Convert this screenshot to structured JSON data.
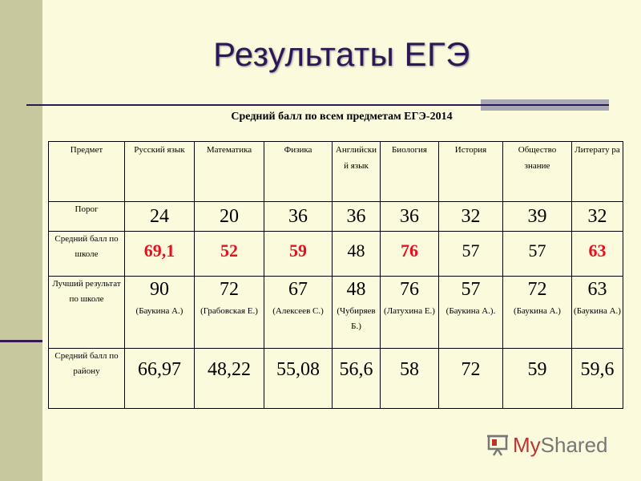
{
  "title": "Результаты ЕГЭ",
  "subtitle": "Средний балл по всем предметам ЕГЭ-2014",
  "logo": {
    "text_my": "My",
    "text_shared": "Shared"
  },
  "colors": {
    "background": "#fbfadc",
    "title": "#2e1755",
    "highlight_red": "#e8101e"
  },
  "table": {
    "header": {
      "subject_label": "Предмет",
      "subjects": [
        "Русский язык",
        "Математика",
        "Физика",
        "Английски й язык",
        "Биология",
        "История",
        "Общество знание",
        "Литерату ра"
      ]
    },
    "threshold": {
      "label": "Порог",
      "values": [
        "24",
        "20",
        "36",
        "36",
        "36",
        "32",
        "39",
        "32"
      ]
    },
    "school_avg": {
      "label": "Средний балл по школе",
      "values": [
        "69,1",
        "52",
        "59",
        "48",
        "76",
        "57",
        "57",
        "63"
      ],
      "red": [
        true,
        true,
        true,
        false,
        true,
        false,
        false,
        true
      ]
    },
    "best": {
      "label": "Лучший результат по школе",
      "values": [
        "90",
        "72",
        "67",
        "48",
        "76",
        "57",
        "72",
        "63"
      ],
      "names": [
        "(Баукина А.)",
        "(Грабовская Е.)",
        "(Алексеев С.)",
        "(Чубиряев Б.)",
        "(Латухина Е.)",
        "(Баукина А.).",
        "(Баукина А.)",
        "(Баукина А.)"
      ]
    },
    "district_avg": {
      "label": "Средний балл по району",
      "values": [
        "66,97",
        "48,22",
        "55,08",
        "56,6",
        "58",
        "72",
        "59",
        "59,6"
      ]
    }
  }
}
